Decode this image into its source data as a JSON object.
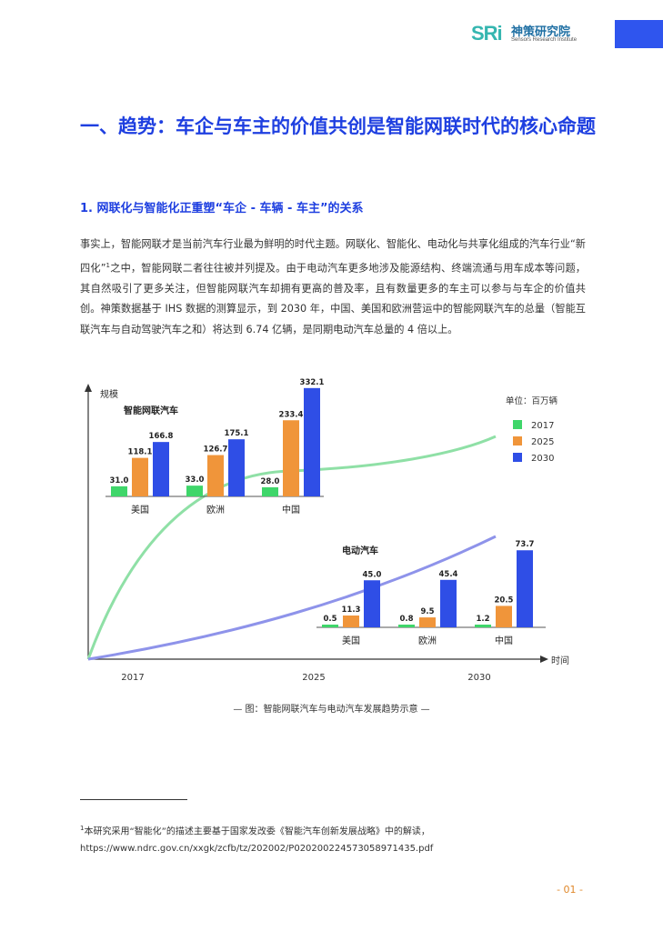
{
  "header": {
    "logo_mark": "SRi",
    "logo_cn": "神策研究院",
    "logo_en": "Sensors Research Institute",
    "corner_color": "#2f55ee"
  },
  "heading1": "一、趋势：车企与车主的价值共创是智能网联时代的核心命题",
  "heading2": "1. 网联化与智能化正重塑“车企 - 车辆 - 车主”的关系",
  "paragraph": {
    "before_sup": "事实上，智能网联才是当前汽车行业最为鲜明的时代主题。网联化、智能化、电动化与共享化组成的汽车行业“新四化”",
    "sup": "1",
    "after_sup": "之中，智能网联二者往往被并列提及。由于电动汽车更多地涉及能源结构、终端流通与用车成本等问题，其自然吸引了更多关注，但智能网联汽车却拥有更高的普及率，且有数量更多的车主可以参与与车企的价值共创。神策数据基于 IHS 数据的测算显示，到 2030 年，中国、美国和欧洲营运中的智能网联汽车的总量（智能互联汽车与自动驾驶汽车之和）将达到 6.74 亿辆，是同期电动汽车总量的 4 倍以上。"
  },
  "chart_data": [
    {
      "type": "bar",
      "title": "智能网联汽车",
      "categories": [
        "美国",
        "欧洲",
        "中国"
      ],
      "series": [
        {
          "name": "2017",
          "values": [
            31.0,
            33.0,
            28.0
          ]
        },
        {
          "name": "2025",
          "values": [
            118.1,
            126.7,
            233.4
          ]
        },
        {
          "name": "2030",
          "values": [
            166.8,
            175.1,
            332.1
          ]
        }
      ],
      "value_labels": [
        [
          "31.0",
          "118.1",
          "166.8"
        ],
        [
          "33.0",
          "126.7",
          "175.1"
        ],
        [
          "28.0",
          "233.4",
          "332.1"
        ]
      ],
      "ylim": [
        0,
        340
      ]
    },
    {
      "type": "bar",
      "title": "电动汽车",
      "categories": [
        "美国",
        "欧洲",
        "中国"
      ],
      "series": [
        {
          "name": "2017",
          "values": [
            0.5,
            0.8,
            1.2
          ]
        },
        {
          "name": "2025",
          "values": [
            11.3,
            9.5,
            20.5
          ]
        },
        {
          "name": "2030",
          "values": [
            45.0,
            45.4,
            73.7
          ]
        }
      ],
      "value_labels": [
        [
          "0.5",
          "11.3",
          "45.0"
        ],
        [
          "0.8",
          "9.5",
          "45.4"
        ],
        [
          "1.2",
          "20.5",
          "73.7"
        ]
      ],
      "ylim": [
        0,
        80
      ]
    },
    {
      "type": "line",
      "xlabel": "时间",
      "ylabel": "规模",
      "x_ticks": [
        "2017",
        "2025",
        "2030"
      ],
      "legend": {
        "unit": "单位：百万辆",
        "placement": "top-right",
        "items": [
          {
            "name": "2017",
            "color": "#3fd66a"
          },
          {
            "name": "2025",
            "color": "#f0953a"
          },
          {
            "name": "2030",
            "color": "#2f4ee6"
          }
        ]
      },
      "curves": {
        "smart_color": "#8fe0a6",
        "ev_color": "#8e93ea"
      }
    }
  ],
  "colors": {
    "c2017": "#3fd66a",
    "c2025": "#f0953a",
    "c2030": "#2f4ee6",
    "accent": "#1e3fe0",
    "page_no": "#e0882b"
  },
  "caption": "— 图：智能网联汽车与电动汽车发展趋势示意 —",
  "footnote": {
    "sup": "1",
    "text": "本研究采用“智能化”的描述主要基于国家发改委《智能汽车创新发展战略》中的解读，https://www.ndrc.gov.cn/xxgk/zcfb/tz/202002/P020200224573058971435.pdf"
  },
  "page_number": "- 01 -"
}
